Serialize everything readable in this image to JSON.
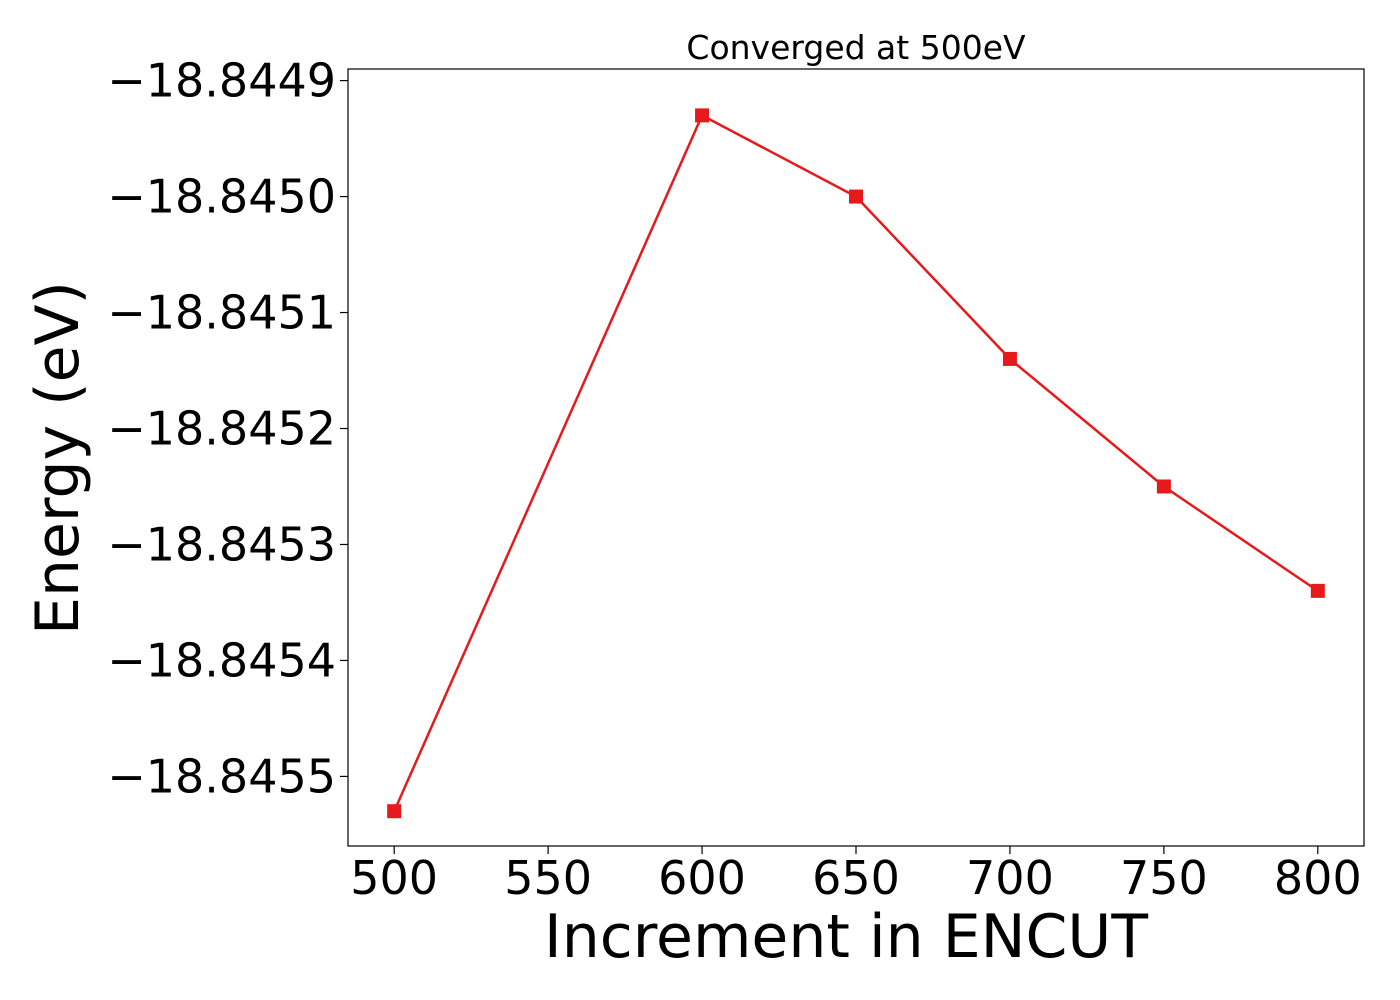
{
  "chart_data": {
    "type": "line",
    "title": "Converged at 500eV",
    "xlabel": "Increment in ENCUT",
    "ylabel": "Energy (eV)",
    "xlim": [
      485,
      815
    ],
    "ylim": [
      -18.84556,
      -18.84489
    ],
    "x_ticks": [
      {
        "value": 500,
        "label": "500"
      },
      {
        "value": 550,
        "label": "550"
      },
      {
        "value": 600,
        "label": "600"
      },
      {
        "value": 650,
        "label": "650"
      },
      {
        "value": 700,
        "label": "700"
      },
      {
        "value": 750,
        "label": "750"
      },
      {
        "value": 800,
        "label": "800"
      }
    ],
    "y_ticks": [
      {
        "value": -18.8449,
        "label": "−18.8449"
      },
      {
        "value": -18.845,
        "label": "−18.8450"
      },
      {
        "value": -18.8451,
        "label": "−18.8451"
      },
      {
        "value": -18.8452,
        "label": "−18.8452"
      },
      {
        "value": -18.8453,
        "label": "−18.8453"
      },
      {
        "value": -18.8454,
        "label": "−18.8454"
      },
      {
        "value": -18.8455,
        "label": "−18.8455"
      }
    ],
    "grid": false,
    "series": [
      {
        "color": "#e41a1c",
        "marker": "square",
        "x": [
          500,
          600,
          650,
          700,
          750,
          800
        ],
        "y": [
          -18.84553,
          -18.84493,
          -18.845,
          -18.84514,
          -18.84525,
          -18.84534
        ]
      }
    ]
  }
}
